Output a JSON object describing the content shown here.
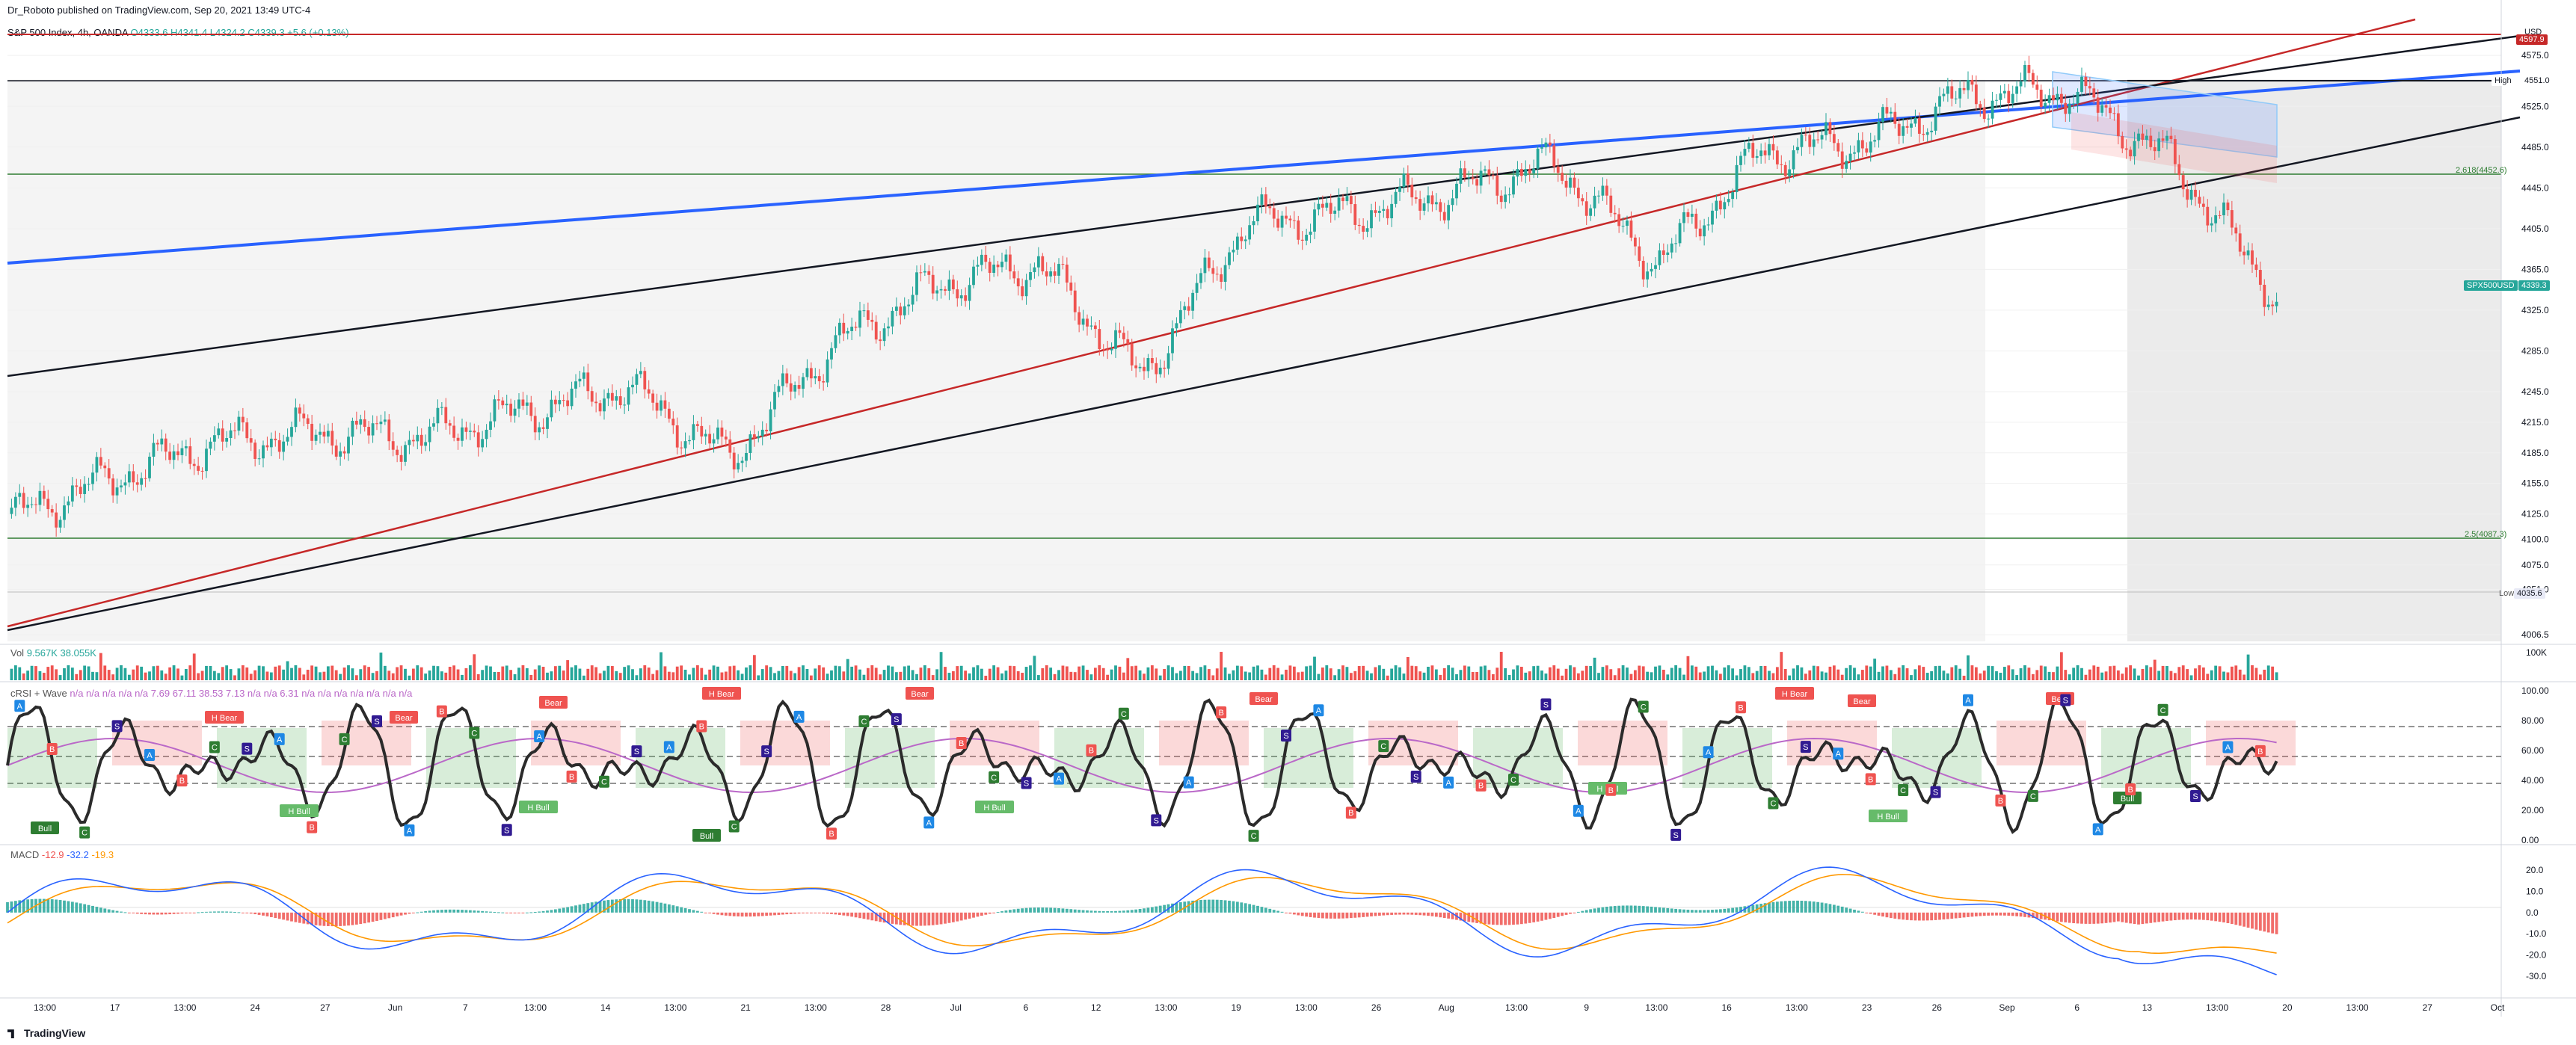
{
  "header": {
    "published": "Dr_Roboto published on TradingView.com, Sep 20, 2021 13:49 UTC-4"
  },
  "symbol": {
    "title": "S&P 500 Index, 4h, OANDA",
    "ohlc": "O4333.6 H4341.4 L4324.2 C4339.3 +5.6 (+0.13%)"
  },
  "indicators": {
    "volume_label": "Vol",
    "volume_values": "9.567K 38.055K",
    "crsi_label": "cRSI + Wave",
    "crsi_values": "n/a n/a n/a n/a n/a 7.69 67.11 38.53 7.13 n/a n/a 6.31 n/a n/a n/a n/a n/a n/a n/a",
    "macd_label": "MACD",
    "macd_v1": "-12.9",
    "macd_v2": "-32.2",
    "macd_v3": "-19.3"
  },
  "price_axis": {
    "currency": "USD",
    "ticks": [
      "4575.0",
      "4525.0",
      "4485.0",
      "4445.0",
      "4405.0",
      "4365.0",
      "4325.0",
      "4285.0",
      "4245.0",
      "4215.0",
      "4185.0",
      "4155.0",
      "4125.0",
      "4100.0",
      "4075.0",
      "4051.0",
      "4006.5"
    ],
    "high_label": "High",
    "high_value": "4551.0",
    "low_label": "Low",
    "low_value": "4035.6",
    "symbol_tag": "SPX500USD",
    "last_price": "4339.3",
    "fib_upper": "2.618(4452.6)",
    "fib_lower": "2.5(4087.3)",
    "red_level": "4597.9"
  },
  "volume_axis": {
    "tick": "100K"
  },
  "crsi_axis": {
    "ticks": [
      "100.00",
      "80.00",
      "60.00",
      "40.00",
      "20.00",
      "0.00"
    ]
  },
  "macd_axis": {
    "ticks": [
      "20.0",
      "10.0",
      "0.0",
      "-10.0",
      "-20.0",
      "-30.0"
    ]
  },
  "time_axis": [
    "13:00",
    "17",
    "13:00",
    "24",
    "27",
    "Jun",
    "7",
    "13:00",
    "14",
    "13:00",
    "21",
    "13:00",
    "28",
    "Jul",
    "6",
    "12",
    "13:00",
    "19",
    "13:00",
    "26",
    "Aug",
    "13:00",
    "9",
    "13:00",
    "16",
    "13:00",
    "23",
    "26",
    "Sep",
    "6",
    "13",
    "13:00",
    "20",
    "13:00",
    "27",
    "Oct"
  ],
  "signals": {
    "bull": "Bull",
    "bear": "Bear",
    "hbull": "H Bull",
    "hbear": "H Bear",
    "a": "A",
    "b": "B",
    "c": "C",
    "s": "S"
  },
  "colors": {
    "up": "#26a69a",
    "down": "#ef5350",
    "blue_trend": "#2962ff",
    "red_trend": "#c62828",
    "fib_green": "#2e7d32",
    "crsi_line": "#2b2b2b",
    "macd_line": "#2962ff",
    "signal_line": "#ff9800"
  },
  "footer": {
    "brand": "TradingView"
  },
  "chart_data": {
    "type": "candlestick",
    "title": "S&P 500 Index, 4h, OANDA",
    "ylim": [
      4000,
      4600
    ],
    "closes_by_week": [
      {
        "x": "May 13",
        "y": 4120
      },
      {
        "x": "May 17",
        "y": 4160
      },
      {
        "x": "May 24",
        "y": 4195
      },
      {
        "x": "May 27",
        "y": 4205
      },
      {
        "x": "Jun 1",
        "y": 4200
      },
      {
        "x": "Jun 7",
        "y": 4225
      },
      {
        "x": "Jun 14",
        "y": 4250
      },
      {
        "x": "Jun 21",
        "y": 4180
      },
      {
        "x": "Jun 28",
        "y": 4290
      },
      {
        "x": "Jul 6",
        "y": 4350
      },
      {
        "x": "Jul 12",
        "y": 4370
      },
      {
        "x": "Jul 19",
        "y": 4260
      },
      {
        "x": "Jul 26",
        "y": 4410
      },
      {
        "x": "Aug 2",
        "y": 4420
      },
      {
        "x": "Aug 9",
        "y": 4440
      },
      {
        "x": "Aug 16",
        "y": 4470
      },
      {
        "x": "Aug 19",
        "y": 4370
      },
      {
        "x": "Aug 23",
        "y": 4480
      },
      {
        "x": "Aug 26",
        "y": 4490
      },
      {
        "x": "Sep 1",
        "y": 4535
      },
      {
        "x": "Sep 6",
        "y": 4540
      },
      {
        "x": "Sep 13",
        "y": 4470
      },
      {
        "x": "Sep 20",
        "y": 4339.3
      }
    ],
    "levels": [
      {
        "value": 4597.9
      },
      {
        "name": "High",
        "value": 4551.0
      },
      {
        "name": "2.618",
        "value": 4452.6
      },
      {
        "name": "2.5",
        "value": 4087.3
      },
      {
        "name": "Low",
        "value": 4035.6
      }
    ]
  }
}
